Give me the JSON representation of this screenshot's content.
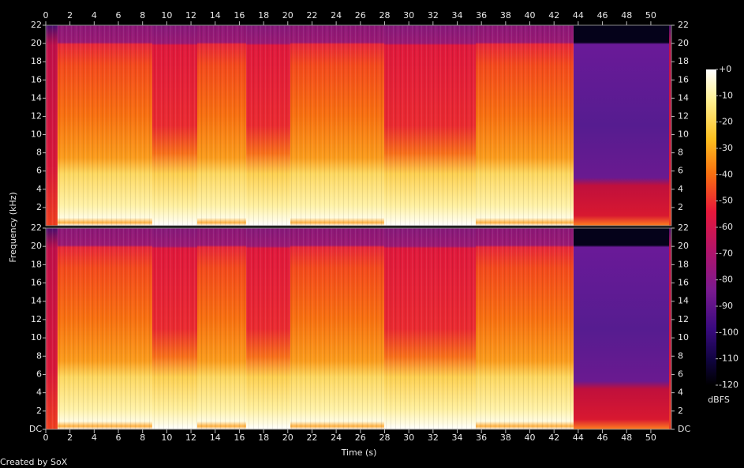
{
  "chart_data": {
    "type": "spectrogram",
    "xlabel": "Time (s)",
    "ylabel": "Frequency (kHz)",
    "xlim": [
      0,
      51.7
    ],
    "xticks": [
      0,
      2,
      4,
      6,
      8,
      10,
      12,
      14,
      16,
      18,
      20,
      22,
      24,
      26,
      28,
      30,
      32,
      34,
      36,
      38,
      40,
      42,
      44,
      46,
      48,
      50
    ],
    "panels": [
      {
        "ylim": [
          0,
          22
        ],
        "yticks": [
          2,
          4,
          6,
          8,
          10,
          12,
          14,
          16,
          18,
          20,
          22
        ]
      },
      {
        "ylim": [
          0,
          22
        ],
        "yticks": [
          {
            "value": 0,
            "label": "DC"
          },
          2,
          4,
          6,
          8,
          10,
          12,
          14,
          16,
          18,
          20,
          22
        ]
      }
    ],
    "colorbar": {
      "ylim": [
        -120,
        0
      ],
      "yticks": [
        {
          "value": 0,
          "label": "+0"
        },
        -10,
        -20,
        -30,
        -40,
        -50,
        -60,
        -70,
        -80,
        -90,
        -100,
        -110,
        -120
      ],
      "label": "dBFS"
    },
    "footer": "Created by SoX"
  }
}
